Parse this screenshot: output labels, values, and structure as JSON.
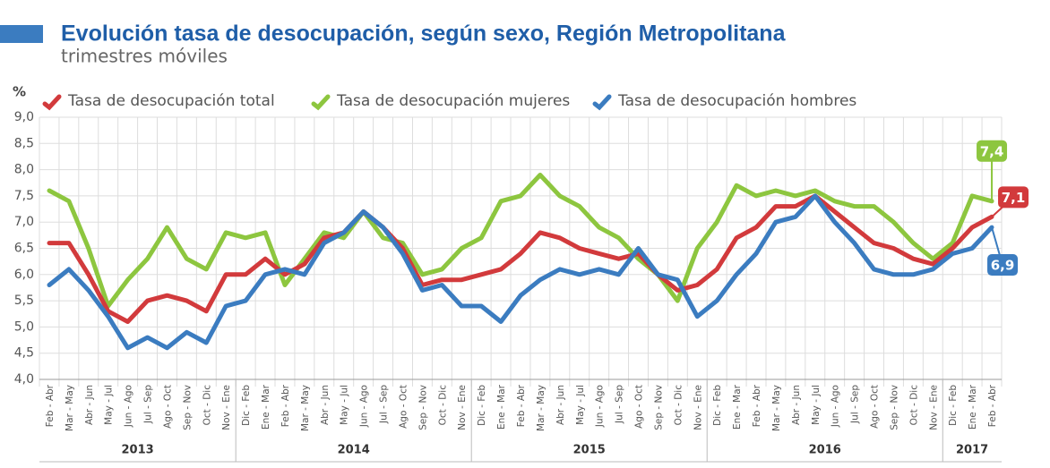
{
  "chart_data": {
    "type": "line",
    "title": "Evolución tasa de desocupación, según sexo, Región Metropolitana",
    "subtitle": "trimestres móviles",
    "y_label": "%",
    "categories": [
      "Feb - Abr",
      "Mar - May",
      "Abr - Jun",
      "May - Jul",
      "Jun - Ago",
      "Jul - Sep",
      "Ago - Oct",
      "Sep - Nov",
      "Oct - Dic",
      "Nov - Ene",
      "Dic - Feb",
      "Ene - Mar",
      "Feb - Abr",
      "Mar - May",
      "Abr - Jun",
      "May - Jul",
      "Jun - Ago",
      "Jul - Sep",
      "Ago - Oct",
      "Sep - Nov",
      "Oct - Dic",
      "Nov - Ene",
      "Dic - Feb",
      "Ene - Mar",
      "Feb - Abr",
      "Mar - May",
      "Abr - Jun",
      "May - Jul",
      "Jun - Ago",
      "Jul - Sep",
      "Ago - Oct",
      "Sep - Nov",
      "Oct - Dic",
      "Nov - Ene",
      "Dic - Feb",
      "Ene - Mar",
      "Feb - Abr",
      "Mar - May",
      "Abr - Jun",
      "May - Jul",
      "Jun - Ago",
      "Jul - Sep",
      "Ago - Oct",
      "Sep - Nov",
      "Oct - Dic",
      "Nov - Ene",
      "Dic - Feb",
      "Ene - Mar",
      "Feb - Abr"
    ],
    "year_groups": [
      "2013",
      "2014",
      "2015",
      "2016",
      "2017"
    ],
    "series": [
      {
        "name": "Tasa de desocupación total",
        "color": "#d23a3c",
        "values": [
          6.6,
          6.6,
          6.0,
          5.3,
          5.1,
          5.5,
          5.6,
          5.5,
          5.3,
          6.0,
          6.0,
          6.3,
          6.0,
          6.2,
          6.7,
          6.8,
          7.2,
          6.9,
          6.5,
          5.8,
          5.9,
          5.9,
          6.0,
          6.1,
          6.4,
          6.8,
          6.7,
          6.5,
          6.4,
          6.3,
          6.4,
          6.0,
          5.7,
          5.8,
          6.1,
          6.7,
          6.9,
          7.3,
          7.3,
          7.5,
          7.2,
          6.9,
          6.6,
          6.5,
          6.3,
          6.2,
          6.5,
          6.9,
          7.1
        ],
        "value_labels": [
          null,
          null,
          null,
          null,
          null,
          null,
          null,
          null,
          null,
          null,
          null,
          null,
          null,
          null,
          null,
          null,
          null,
          null,
          null,
          null,
          null,
          null,
          null,
          null,
          null,
          null,
          null,
          null,
          null,
          null,
          null,
          null,
          null,
          null,
          null,
          null,
          null,
          null,
          null,
          null,
          null,
          null,
          null,
          null,
          null,
          null,
          null,
          null,
          "7,1"
        ]
      },
      {
        "name": "Tasa de desocupación mujeres",
        "color": "#8dc63f",
        "values": [
          7.6,
          7.4,
          6.5,
          5.4,
          5.9,
          6.3,
          6.9,
          6.3,
          6.1,
          6.8,
          6.7,
          6.8,
          5.8,
          6.3,
          6.8,
          6.7,
          7.2,
          6.7,
          6.6,
          6.0,
          6.1,
          6.5,
          6.7,
          7.4,
          7.5,
          7.9,
          7.5,
          7.3,
          6.9,
          6.7,
          6.3,
          6.0,
          5.5,
          6.5,
          7.0,
          7.7,
          7.5,
          7.6,
          7.5,
          7.6,
          7.4,
          7.3,
          7.3,
          7.0,
          6.6,
          6.3,
          6.6,
          7.5,
          7.4
        ],
        "value_labels": [
          null,
          null,
          null,
          null,
          null,
          null,
          null,
          null,
          null,
          null,
          null,
          null,
          null,
          null,
          null,
          null,
          null,
          null,
          null,
          null,
          null,
          null,
          null,
          null,
          null,
          null,
          null,
          null,
          null,
          null,
          null,
          null,
          null,
          null,
          null,
          null,
          null,
          null,
          null,
          null,
          null,
          null,
          null,
          null,
          null,
          null,
          null,
          null,
          "7,4"
        ]
      },
      {
        "name": "Tasa de desocupación hombres",
        "color": "#3b7cc0",
        "values": [
          5.8,
          6.1,
          5.7,
          5.2,
          4.6,
          4.8,
          4.6,
          4.9,
          4.7,
          5.4,
          5.5,
          6.0,
          6.1,
          6.0,
          6.6,
          6.8,
          7.2,
          6.9,
          6.4,
          5.7,
          5.8,
          5.4,
          5.4,
          5.1,
          5.6,
          5.9,
          6.1,
          6.0,
          6.1,
          6.0,
          6.5,
          6.0,
          5.9,
          5.2,
          5.5,
          6.0,
          6.4,
          7.0,
          7.1,
          7.5,
          7.0,
          6.6,
          6.1,
          6.0,
          6.0,
          6.1,
          6.4,
          6.5,
          6.9
        ],
        "value_labels": [
          null,
          null,
          null,
          null,
          null,
          null,
          null,
          null,
          null,
          null,
          null,
          null,
          null,
          null,
          null,
          null,
          null,
          null,
          null,
          null,
          null,
          null,
          null,
          null,
          null,
          null,
          null,
          null,
          null,
          null,
          null,
          null,
          null,
          null,
          null,
          null,
          null,
          null,
          null,
          null,
          null,
          null,
          null,
          null,
          null,
          null,
          null,
          null,
          "6,9"
        ]
      }
    ],
    "ylim": [
      4.0,
      9.0
    ],
    "yticks": [
      {
        "value": 4.0,
        "label": "4,0"
      },
      {
        "value": 4.5,
        "label": "4,5"
      },
      {
        "value": 5.0,
        "label": "5,0"
      },
      {
        "value": 5.5,
        "label": "5,5"
      },
      {
        "value": 6.0,
        "label": "6,0"
      },
      {
        "value": 6.5,
        "label": "6,5"
      },
      {
        "value": 7.0,
        "label": "7,0"
      },
      {
        "value": 7.5,
        "label": "7,5"
      },
      {
        "value": 8.0,
        "label": "8,0"
      },
      {
        "value": 8.5,
        "label": "8,5"
      },
      {
        "value": 9.0,
        "label": "9,0"
      }
    ],
    "grid": true
  }
}
